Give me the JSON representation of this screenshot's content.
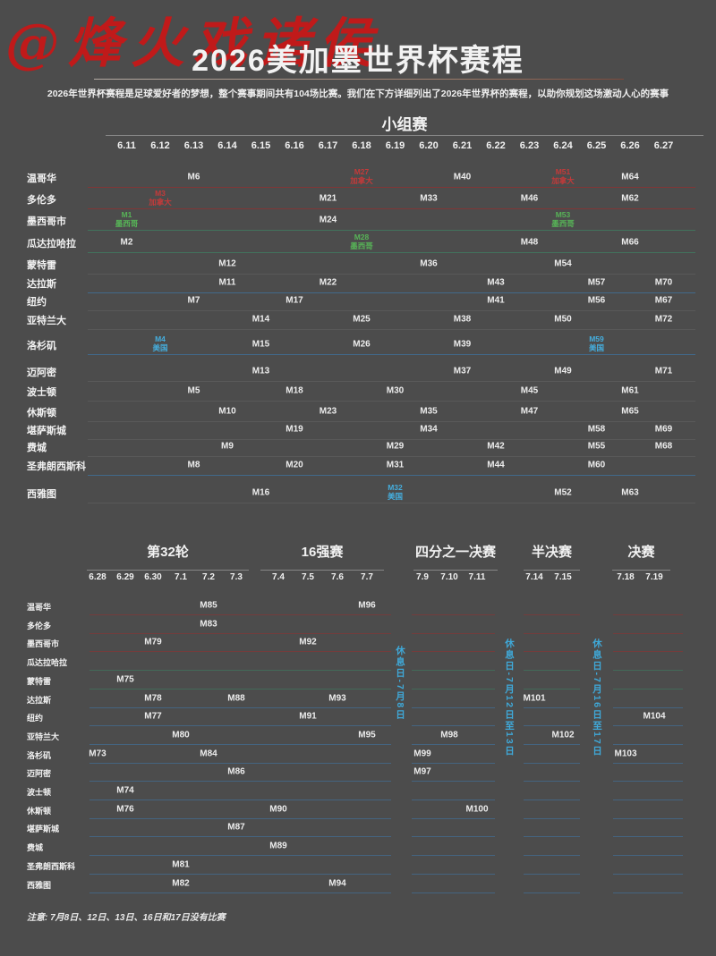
{
  "watermark": "@烽火戏诸侯",
  "header": {
    "title": "2026美加墨世界杯赛程",
    "subtitle": "2026年世界杯赛程是足球爱好者的梦想，整个赛事期间共有104场比赛。我们在下方详细列出了2026年世界杯的赛程，以助你规划这场激动人心的赛事"
  },
  "footer_note": "注意: 7月8日、12日、13日、16日和17日没有比赛",
  "colors": {
    "background": "#4c4c4c",
    "canada": "#c43a3a",
    "mexico": "#57b457",
    "usa": "#45aede",
    "rest_day": "#3fa9d9",
    "watermark_red": "#c01a1a"
  },
  "chart_data": {
    "type": "table",
    "title": "2026美加墨世界杯赛程",
    "cities": [
      "温哥华",
      "多伦多",
      "墨西哥市",
      "瓜达拉哈拉",
      "蒙特雷",
      "达拉斯",
      "纽约",
      "亚特兰大",
      "洛杉矶",
      "迈阿密",
      "波士顿",
      "休斯顿",
      "堪萨斯城",
      "费城",
      "圣弗朗西斯科",
      "西雅图"
    ],
    "group_stage": {
      "title": "小组赛",
      "dates": [
        "6.11",
        "6.12",
        "6.13",
        "6.14",
        "6.15",
        "6.16",
        "6.17",
        "6.18",
        "6.19",
        "6.20",
        "6.21",
        "6.22",
        "6.23",
        "6.24",
        "6.25",
        "6.26",
        "6.27"
      ],
      "rows": [
        {
          "city": "温哥华",
          "matches": [
            {
              "m": "M6",
              "date": "6.13"
            },
            {
              "m": "M27",
              "date": "6.18",
              "team": "加拿大"
            },
            {
              "m": "M40",
              "date": "6.21"
            },
            {
              "m": "M51",
              "date": "6.24",
              "team": "加拿大"
            },
            {
              "m": "M64",
              "date": "6.26"
            }
          ]
        },
        {
          "city": "多伦多",
          "matches": [
            {
              "m": "M3",
              "date": "6.12",
              "team": "加拿大"
            },
            {
              "m": "M21",
              "date": "6.17"
            },
            {
              "m": "M33",
              "date": "6.20"
            },
            {
              "m": "M46",
              "date": "6.23"
            },
            {
              "m": "M62",
              "date": "6.26"
            }
          ]
        },
        {
          "city": "墨西哥市",
          "matches": [
            {
              "m": "M1",
              "date": "6.11",
              "team": "墨西哥"
            },
            {
              "m": "M24",
              "date": "6.17"
            },
            {
              "m": "M53",
              "date": "6.24",
              "team": "墨西哥"
            }
          ]
        },
        {
          "city": "瓜达拉哈拉",
          "matches": [
            {
              "m": "M2",
              "date": "6.11"
            },
            {
              "m": "M28",
              "date": "6.18",
              "team": "墨西哥"
            },
            {
              "m": "M48",
              "date": "6.23"
            },
            {
              "m": "M66",
              "date": "6.26"
            }
          ]
        },
        {
          "city": "蒙特雷",
          "matches": [
            {
              "m": "M12",
              "date": "6.14"
            },
            {
              "m": "M36",
              "date": "6.20"
            },
            {
              "m": "M54",
              "date": "6.24"
            }
          ]
        },
        {
          "city": "达拉斯",
          "matches": [
            {
              "m": "M11",
              "date": "6.14"
            },
            {
              "m": "M22",
              "date": "6.17"
            },
            {
              "m": "M43",
              "date": "6.22"
            },
            {
              "m": "M57",
              "date": "6.25"
            },
            {
              "m": "M70",
              "date": "6.27"
            }
          ]
        },
        {
          "city": "纽约",
          "matches": [
            {
              "m": "M7",
              "date": "6.13"
            },
            {
              "m": "M17",
              "date": "6.16"
            },
            {
              "m": "M41",
              "date": "6.22"
            },
            {
              "m": "M56",
              "date": "6.25"
            },
            {
              "m": "M67",
              "date": "6.27"
            }
          ]
        },
        {
          "city": "亚特兰大",
          "matches": [
            {
              "m": "M14",
              "date": "6.15"
            },
            {
              "m": "M25",
              "date": "6.18"
            },
            {
              "m": "M38",
              "date": "6.21"
            },
            {
              "m": "M50",
              "date": "6.24"
            },
            {
              "m": "M72",
              "date": "6.27"
            }
          ]
        },
        {
          "city": "洛杉矶",
          "matches": [
            {
              "m": "M4",
              "date": "6.12",
              "team": "美国"
            },
            {
              "m": "M15",
              "date": "6.15"
            },
            {
              "m": "M26",
              "date": "6.18"
            },
            {
              "m": "M39",
              "date": "6.21"
            },
            {
              "m": "M59",
              "date": "6.25",
              "team": "美国"
            }
          ]
        },
        {
          "city": "迈阿密",
          "matches": [
            {
              "m": "M13",
              "date": "6.15"
            },
            {
              "m": "M37",
              "date": "6.21"
            },
            {
              "m": "M49",
              "date": "6.24"
            },
            {
              "m": "M71",
              "date": "6.27"
            }
          ]
        },
        {
          "city": "波士顿",
          "matches": [
            {
              "m": "M5",
              "date": "6.13"
            },
            {
              "m": "M18",
              "date": "6.16"
            },
            {
              "m": "M30",
              "date": "6.19"
            },
            {
              "m": "M45",
              "date": "6.23"
            },
            {
              "m": "M61",
              "date": "6.26"
            }
          ]
        },
        {
          "city": "休斯顿",
          "matches": [
            {
              "m": "M10",
              "date": "6.14"
            },
            {
              "m": "M23",
              "date": "6.17"
            },
            {
              "m": "M35",
              "date": "6.20"
            },
            {
              "m": "M47",
              "date": "6.23"
            },
            {
              "m": "M65",
              "date": "6.26"
            }
          ]
        },
        {
          "city": "堪萨斯城",
          "matches": [
            {
              "m": "M19",
              "date": "6.16"
            },
            {
              "m": "M34",
              "date": "6.20"
            },
            {
              "m": "M58",
              "date": "6.25"
            },
            {
              "m": "M69",
              "date": "6.27"
            }
          ]
        },
        {
          "city": "费城",
          "matches": [
            {
              "m": "M9",
              "date": "6.14"
            },
            {
              "m": "M29",
              "date": "6.19"
            },
            {
              "m": "M42",
              "date": "6.22"
            },
            {
              "m": "M55",
              "date": "6.25"
            },
            {
              "m": "M68",
              "date": "6.27"
            }
          ]
        },
        {
          "city": "圣弗朗西斯科",
          "matches": [
            {
              "m": "M8",
              "date": "6.13"
            },
            {
              "m": "M20",
              "date": "6.16"
            },
            {
              "m": "M31",
              "date": "6.19"
            },
            {
              "m": "M44",
              "date": "6.22"
            },
            {
              "m": "M60",
              "date": "6.25"
            }
          ]
        },
        {
          "city": "西雅图",
          "matches": [
            {
              "m": "M16",
              "date": "6.15"
            },
            {
              "m": "M32",
              "date": "6.19",
              "team": "美国"
            },
            {
              "m": "M52",
              "date": "6.24"
            },
            {
              "m": "M63",
              "date": "6.26"
            }
          ]
        }
      ]
    },
    "knockout": {
      "rounds": [
        {
          "title": "第32轮",
          "dates": [
            "6.28",
            "6.29",
            "6.30",
            "7.1",
            "7.2",
            "7.3"
          ]
        },
        {
          "title": "16强赛",
          "dates": [
            "7.4",
            "7.5",
            "7.6",
            "7.7"
          ]
        },
        {
          "title": "四分之一决赛",
          "dates": [
            "7.9",
            "7.10",
            "7.11"
          ]
        },
        {
          "title": "半决赛",
          "dates": [
            "7.14",
            "7.15"
          ]
        },
        {
          "title": "决赛",
          "dates": [
            "7.18",
            "7.19"
          ]
        }
      ],
      "rest_days": [
        "休息日-7月8日",
        "休息日-7月12日至13日",
        "休息日-7月16日至17日"
      ],
      "rows": [
        {
          "city": "温哥华",
          "matches": [
            {
              "m": "M85",
              "date": "7.2"
            },
            {
              "m": "M96",
              "date": "7.7"
            }
          ]
        },
        {
          "city": "多伦多",
          "matches": [
            {
              "m": "M83",
              "date": "7.2"
            }
          ]
        },
        {
          "city": "墨西哥市",
          "matches": [
            {
              "m": "M79",
              "date": "6.30"
            },
            {
              "m": "M92",
              "date": "7.5"
            }
          ]
        },
        {
          "city": "瓜达拉哈拉",
          "matches": []
        },
        {
          "city": "蒙特雷",
          "matches": [
            {
              "m": "M75",
              "date": "6.29"
            }
          ]
        },
        {
          "city": "达拉斯",
          "matches": [
            {
              "m": "M78",
              "date": "6.30"
            },
            {
              "m": "M88",
              "date": "7.3"
            },
            {
              "m": "M93",
              "date": "7.6"
            },
            {
              "m": "M101",
              "date": "7.14"
            }
          ]
        },
        {
          "city": "纽约",
          "matches": [
            {
              "m": "M77",
              "date": "6.30"
            },
            {
              "m": "M91",
              "date": "7.5"
            },
            {
              "m": "M104",
              "date": "7.19"
            }
          ]
        },
        {
          "city": "亚特兰大",
          "matches": [
            {
              "m": "M80",
              "date": "7.1"
            },
            {
              "m": "M95",
              "date": "7.7"
            },
            {
              "m": "M98",
              "date": "7.10"
            },
            {
              "m": "M102",
              "date": "7.15"
            }
          ]
        },
        {
          "city": "洛杉矶",
          "matches": [
            {
              "m": "M73",
              "date": "6.28"
            },
            {
              "m": "M84",
              "date": "7.2"
            },
            {
              "m": "M99",
              "date": "7.9"
            },
            {
              "m": "M103",
              "date": "7.18"
            }
          ]
        },
        {
          "city": "迈阿密",
          "matches": [
            {
              "m": "M86",
              "date": "7.3"
            },
            {
              "m": "M97",
              "date": "7.9"
            }
          ]
        },
        {
          "city": "波士顿",
          "matches": [
            {
              "m": "M74",
              "date": "6.29"
            }
          ]
        },
        {
          "city": "休斯顿",
          "matches": [
            {
              "m": "M76",
              "date": "6.29"
            },
            {
              "m": "M90",
              "date": "7.4"
            },
            {
              "m": "M100",
              "date": "7.11"
            }
          ]
        },
        {
          "city": "堪萨斯城",
          "matches": [
            {
              "m": "M87",
              "date": "7.3"
            }
          ]
        },
        {
          "city": "费城",
          "matches": [
            {
              "m": "M89",
              "date": "7.4"
            }
          ]
        },
        {
          "city": "圣弗朗西斯科",
          "matches": [
            {
              "m": "M81",
              "date": "7.1"
            }
          ]
        },
        {
          "city": "西雅图",
          "matches": [
            {
              "m": "M82",
              "date": "7.1"
            },
            {
              "m": "M94",
              "date": "7.6"
            }
          ]
        }
      ]
    }
  }
}
